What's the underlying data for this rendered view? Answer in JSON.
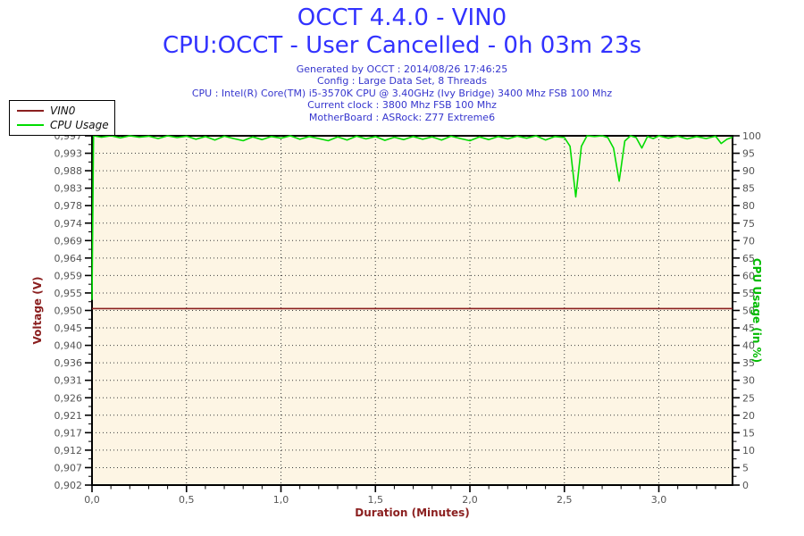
{
  "header": {
    "title": "OCCT 4.4.0 - VIN0",
    "subtitle": "CPU:OCCT - User Cancelled - 0h 03m 23s",
    "info_lines": [
      "Generated by OCCT : 2014/08/26 17:46:25",
      "Config : Large Data Set, 8 Threads",
      "CPU : Intel(R) Core(TM) i5-3570K CPU @ 3.40GHz (Ivy Bridge) 3400 Mhz FSB 100 Mhz",
      "Current clock : 3800 Mhz FSB 100 Mhz",
      "MotherBoard : ASRock: Z77 Extreme6"
    ]
  },
  "colors": {
    "title_blue": "#3232FF",
    "info_blue": "#3636CE",
    "dark_red": "#8B1F1F",
    "green_line": "#00DC00",
    "green_label": "#00BB00",
    "tick_text": "#555555",
    "plot_bg": "#FDF5E4"
  },
  "legend": {
    "items": [
      {
        "label": "VIN0",
        "color": "#8B1F1F"
      },
      {
        "label": "CPU Usage",
        "color": "#00DC00"
      }
    ]
  },
  "chart_data": {
    "type": "line",
    "title": "OCCT 4.4.0 - VIN0",
    "subtitle": "CPU:OCCT - User Cancelled - 0h 03m 23s",
    "plot_bg": "#FDF5E4",
    "grid": {
      "horizontal_dotted": true,
      "vertical_dotted": true
    },
    "x": {
      "label": "Duration (Minutes)",
      "color": "#8B1F1F",
      "range": [
        0,
        3.39
      ],
      "major_ticks": [
        0,
        0.5,
        1,
        1.5,
        2,
        2.5,
        3
      ],
      "tick_labels": [
        "0,0",
        "0,5",
        "1,0",
        "1,5",
        "2,0",
        "2,5",
        "3,0"
      ],
      "minor_step": 0.1
    },
    "y_left": {
      "label": "Voltage (V)",
      "color": "#8B1F1F",
      "range": [
        0.902,
        0.997
      ],
      "tick_labels": [
        "0,997",
        "0,993",
        "0,988",
        "0,983",
        "0,978",
        "0,974",
        "0,969",
        "0,964",
        "0,959",
        "0,955",
        "0,950",
        "0,945",
        "0,940",
        "0,936",
        "0,931",
        "0,926",
        "0,921",
        "0,917",
        "0,912",
        "0,907",
        "0,902"
      ]
    },
    "y_right": {
      "label": "CPU Usage (in %)",
      "color": "#00BB00",
      "range": [
        0,
        100
      ],
      "tick_labels": [
        "100",
        "95",
        "90",
        "85",
        "80",
        "75",
        "70",
        "65",
        "60",
        "55",
        "50",
        "45",
        "40",
        "35",
        "30",
        "25",
        "20",
        "15",
        "10",
        "5",
        "0"
      ]
    },
    "series": [
      {
        "name": "VIN0",
        "axis": "left",
        "color": "#8B1F1F",
        "points": [
          [
            0,
            0.95
          ],
          [
            3.39,
            0.95
          ]
        ]
      },
      {
        "name": "CPU Usage",
        "axis": "right",
        "color": "#00DC00",
        "points": [
          [
            0,
            53
          ],
          [
            0.008,
            100
          ],
          [
            0.05,
            99.6
          ],
          [
            0.1,
            100
          ],
          [
            0.15,
            99.4
          ],
          [
            0.2,
            100
          ],
          [
            0.25,
            99.6
          ],
          [
            0.3,
            99.9
          ],
          [
            0.35,
            99.2
          ],
          [
            0.4,
            100
          ],
          [
            0.45,
            99.5
          ],
          [
            0.5,
            99.9
          ],
          [
            0.55,
            99.0
          ],
          [
            0.6,
            99.8
          ],
          [
            0.65,
            98.8
          ],
          [
            0.7,
            99.9
          ],
          [
            0.75,
            99.2
          ],
          [
            0.8,
            98.6
          ],
          [
            0.85,
            99.7
          ],
          [
            0.9,
            98.9
          ],
          [
            0.95,
            99.8
          ],
          [
            1.0,
            99.3
          ],
          [
            1.05,
            100
          ],
          [
            1.1,
            99.0
          ],
          [
            1.15,
            99.8
          ],
          [
            1.2,
            99.2
          ],
          [
            1.25,
            98.6
          ],
          [
            1.3,
            99.7
          ],
          [
            1.35,
            98.8
          ],
          [
            1.4,
            99.9
          ],
          [
            1.45,
            99.1
          ],
          [
            1.5,
            99.8
          ],
          [
            1.55,
            98.7
          ],
          [
            1.6,
            99.6
          ],
          [
            1.65,
            98.9
          ],
          [
            1.7,
            99.8
          ],
          [
            1.75,
            99.0
          ],
          [
            1.8,
            99.7
          ],
          [
            1.85,
            98.8
          ],
          [
            1.9,
            99.9
          ],
          [
            1.95,
            99.2
          ],
          [
            2.0,
            98.6
          ],
          [
            2.05,
            99.7
          ],
          [
            2.1,
            98.9
          ],
          [
            2.15,
            99.8
          ],
          [
            2.2,
            99.1
          ],
          [
            2.25,
            99.9
          ],
          [
            2.3,
            99.3
          ],
          [
            2.35,
            100
          ],
          [
            2.4,
            98.8
          ],
          [
            2.45,
            99.8
          ],
          [
            2.5,
            99.5
          ],
          [
            2.53,
            97.0
          ],
          [
            2.56,
            82.5
          ],
          [
            2.59,
            97.0
          ],
          [
            2.62,
            100
          ],
          [
            2.66,
            99.8
          ],
          [
            2.7,
            100
          ],
          [
            2.73,
            99.5
          ],
          [
            2.76,
            96.5
          ],
          [
            2.79,
            87.0
          ],
          [
            2.82,
            98.5
          ],
          [
            2.85,
            100
          ],
          [
            2.88,
            99.5
          ],
          [
            2.91,
            96.5
          ],
          [
            2.94,
            99.8
          ],
          [
            2.97,
            99.2
          ],
          [
            3.0,
            100
          ],
          [
            3.05,
            99.3
          ],
          [
            3.1,
            99.9
          ],
          [
            3.15,
            99.1
          ],
          [
            3.2,
            99.8
          ],
          [
            3.25,
            99.2
          ],
          [
            3.3,
            99.9
          ],
          [
            3.33,
            97.8
          ],
          [
            3.36,
            99.0
          ],
          [
            3.39,
            99.6
          ]
        ]
      }
    ]
  }
}
